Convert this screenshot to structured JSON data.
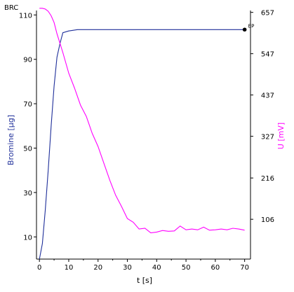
{
  "chart_data": {
    "type": "line",
    "title": "BRC",
    "xlabel": "t [s]",
    "ylabel_left": "Bromine [µg]",
    "ylabel_right": "U [mV]",
    "xlim": [
      -1,
      72
    ],
    "ylim_left": [
      0,
      112
    ],
    "ylim_right": [
      0,
      662
    ],
    "x_ticks": [
      0,
      10,
      20,
      30,
      40,
      50,
      60,
      70
    ],
    "y_ticks_left": [
      10,
      30,
      50,
      70,
      90,
      110
    ],
    "y_ticks_right": [
      106,
      216,
      327,
      437,
      547,
      657
    ],
    "grid": false,
    "colors": {
      "bromine": "#1f2f9a",
      "voltage": "#ff00ff",
      "axis": "#000000"
    },
    "endpoint_label": "EP",
    "series": [
      {
        "axis": "left",
        "color": "#1f2f9a",
        "points": [
          [
            0,
            0
          ],
          [
            1,
            7
          ],
          [
            2,
            22
          ],
          [
            3,
            40
          ],
          [
            4,
            60
          ],
          [
            5,
            78
          ],
          [
            6,
            91
          ],
          [
            7,
            97
          ],
          [
            8,
            102
          ],
          [
            10,
            102.8
          ],
          [
            13,
            103.4
          ],
          [
            20,
            103.4
          ],
          [
            30,
            103.4
          ],
          [
            40,
            103.4
          ],
          [
            50,
            103.4
          ],
          [
            60,
            103.4
          ],
          [
            70,
            103.4
          ]
        ]
      },
      {
        "axis": "right",
        "color": "#ff00ff",
        "points": [
          [
            0,
            668
          ],
          [
            1,
            668
          ],
          [
            2,
            666
          ],
          [
            3,
            660
          ],
          [
            4,
            648
          ],
          [
            5,
            630
          ],
          [
            6,
            600
          ],
          [
            8,
            550
          ],
          [
            10,
            495
          ],
          [
            12,
            455
          ],
          [
            14,
            410
          ],
          [
            16,
            380
          ],
          [
            18,
            335
          ],
          [
            20,
            300
          ],
          [
            22,
            255
          ],
          [
            24,
            210
          ],
          [
            26,
            170
          ],
          [
            28,
            140
          ],
          [
            30,
            108
          ],
          [
            32,
            98
          ],
          [
            34,
            80
          ],
          [
            36,
            82
          ],
          [
            38,
            70
          ],
          [
            40,
            72
          ],
          [
            42,
            76
          ],
          [
            44,
            74
          ],
          [
            46,
            75
          ],
          [
            48,
            88
          ],
          [
            50,
            78
          ],
          [
            52,
            80
          ],
          [
            54,
            78
          ],
          [
            56,
            85
          ],
          [
            58,
            77
          ],
          [
            60,
            78
          ],
          [
            62,
            80
          ],
          [
            64,
            78
          ],
          [
            66,
            82
          ],
          [
            68,
            80
          ],
          [
            70,
            77
          ]
        ]
      }
    ],
    "endpoint": {
      "x": 70,
      "y": 103.4
    }
  }
}
